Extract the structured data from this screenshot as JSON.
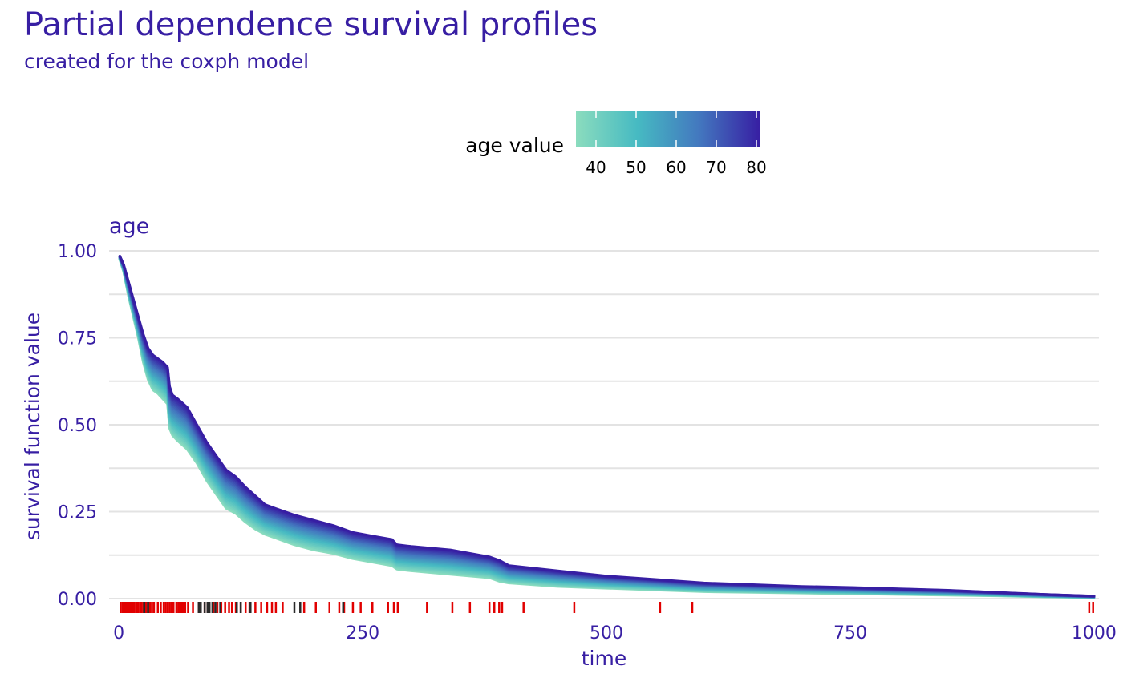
{
  "title": "Partial dependence survival profiles",
  "subtitle": "created for the coxph model",
  "chart_data": {
    "type": "line",
    "facet_label": "age",
    "xlabel": "time",
    "ylabel": "survival function value",
    "xlim": [
      -10,
      1005
    ],
    "ylim": [
      -0.03,
      1.03
    ],
    "x_ticks": [
      0,
      250,
      500,
      750,
      1000
    ],
    "x_tick_labels": [
      "0",
      "250",
      "500",
      "750",
      "1000"
    ],
    "y_ticks": [
      0,
      0.25,
      0.5,
      0.75,
      1.0
    ],
    "y_tick_labels": [
      "0.00",
      "0.25",
      "0.50",
      "0.75",
      "1.00"
    ],
    "grid": true,
    "legend": {
      "title": "age value",
      "position": "top",
      "range": [
        35,
        81
      ],
      "ticks": [
        40,
        50,
        60,
        70,
        80
      ],
      "colors": [
        "#8bdcbe",
        "#46bac2",
        "#4378bf",
        "#371ea3"
      ]
    },
    "profiles": {
      "age_min": 35,
      "age_max": 81,
      "count": 24,
      "time": [
        1,
        5,
        10,
        15,
        20,
        25,
        30,
        35,
        40,
        45,
        50,
        52,
        55,
        60,
        70,
        80,
        90,
        100,
        110,
        120,
        130,
        140,
        150,
        160,
        170,
        180,
        200,
        220,
        240,
        260,
        280,
        285,
        300,
        340,
        380,
        390,
        400,
        450,
        500,
        550,
        600,
        650,
        700,
        750,
        800,
        850,
        900,
        950,
        1000
      ],
      "survival_low_age": [
        0.975,
        0.94,
        0.87,
        0.81,
        0.75,
        0.68,
        0.63,
        0.6,
        0.59,
        0.575,
        0.56,
        0.49,
        0.47,
        0.455,
        0.43,
        0.39,
        0.34,
        0.3,
        0.26,
        0.245,
        0.22,
        0.2,
        0.185,
        0.175,
        0.165,
        0.155,
        0.14,
        0.13,
        0.115,
        0.105,
        0.095,
        0.085,
        0.08,
        0.07,
        0.06,
        0.05,
        0.045,
        0.035,
        0.03,
        0.025,
        0.02,
        0.018,
        0.016,
        0.014,
        0.012,
        0.01,
        0.008,
        0.005,
        0.003
      ],
      "survival_high_age": [
        0.985,
        0.96,
        0.91,
        0.86,
        0.81,
        0.76,
        0.72,
        0.7,
        0.69,
        0.68,
        0.665,
        0.61,
        0.585,
        0.575,
        0.55,
        0.5,
        0.45,
        0.41,
        0.37,
        0.35,
        0.32,
        0.295,
        0.27,
        0.26,
        0.25,
        0.24,
        0.225,
        0.21,
        0.19,
        0.18,
        0.17,
        0.155,
        0.15,
        0.14,
        0.12,
        0.11,
        0.095,
        0.08,
        0.065,
        0.055,
        0.045,
        0.04,
        0.035,
        0.032,
        0.028,
        0.024,
        0.018,
        0.012,
        0.007
      ]
    },
    "event_times": [
      2,
      4,
      5,
      7,
      8,
      10,
      11,
      12,
      13,
      14,
      15,
      16,
      18,
      19,
      20,
      22,
      23,
      25,
      27,
      28,
      30,
      32,
      34,
      36,
      40,
      43,
      46,
      48,
      50,
      52,
      54,
      56,
      59,
      61,
      62,
      64,
      65,
      66,
      68,
      71,
      76,
      82,
      88,
      91,
      97,
      101,
      105,
      109,
      113,
      116,
      120,
      125,
      130,
      134,
      140,
      146,
      152,
      157,
      161,
      168,
      190,
      202,
      216,
      226,
      231,
      240,
      248,
      260,
      276,
      282,
      286,
      316,
      342,
      360,
      380,
      385,
      390,
      393,
      415,
      467,
      555,
      588,
      995,
      999
    ],
    "censored_times": [
      26,
      30,
      82,
      84,
      88,
      91,
      93,
      96,
      99,
      104,
      121,
      125,
      135,
      180,
      186,
      230
    ],
    "event_color": "#e10000",
    "censored_color": "#2a2a2a"
  }
}
